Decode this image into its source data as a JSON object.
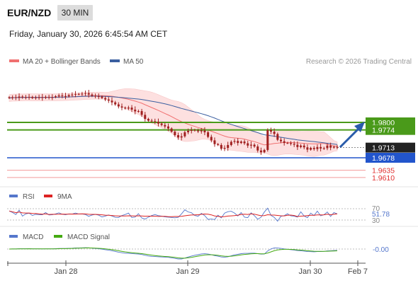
{
  "header": {
    "symbol": "EUR/NZD",
    "interval": "30 MIN",
    "datetime": "Friday, January 30, 2026 6:45:54 AM CET"
  },
  "legend": {
    "ma20": "MA 20 + Bollinger Bands",
    "ma50": "MA 50",
    "copyright": "Research © 2026 Trading Central"
  },
  "colors": {
    "ma20": "#f07070",
    "ma50": "#3b5fa0",
    "band": "#fde0e0",
    "resistance": "#4a9a1a",
    "support": "#2255cc",
    "target_low": "#e03030",
    "arrow": "#2a5caa",
    "rsi": "#5577cc",
    "rsi_ma": "#dd2222",
    "macd": "#5577cc",
    "macd_signal": "#44aa11",
    "candle": "#a02020"
  },
  "chart_data": [
    {
      "type": "candlestick",
      "title": "",
      "x_ticks": [
        "Jan 28",
        "Jan 29",
        "Jan 30",
        "Feb 7"
      ],
      "ylim": [
        1.9595,
        1.9875
      ],
      "price_levels": [
        {
          "label": "1.9800",
          "value": 1.98,
          "kind": "resistance"
        },
        {
          "label": "1.9774",
          "value": 1.9774,
          "kind": "resistance"
        },
        {
          "label": "1.9713",
          "value": 1.9713,
          "kind": "last"
        },
        {
          "label": "1.9678",
          "value": 1.9678,
          "kind": "support"
        },
        {
          "label": "1.9635",
          "value": 1.9635,
          "kind": "target"
        },
        {
          "label": "1.9610",
          "value": 1.961,
          "kind": "target"
        }
      ],
      "close": [
        1.9884,
        1.9887,
        1.9885,
        1.9889,
        1.9886,
        1.9887,
        1.9888,
        1.9884,
        1.9886,
        1.9887,
        1.9885,
        1.9888,
        1.9886,
        1.9887,
        1.989,
        1.9893,
        1.9891,
        1.989,
        1.9894,
        1.9896,
        1.9898,
        1.9897,
        1.9899,
        1.9901,
        1.9896,
        1.9892,
        1.989,
        1.9889,
        1.9884,
        1.9879,
        1.9875,
        1.9869,
        1.9862,
        1.9855,
        1.9851,
        1.9848,
        1.9851,
        1.9844,
        1.9838,
        1.9839,
        1.9826,
        1.9812,
        1.9806,
        1.9804,
        1.9802,
        1.9796,
        1.9791,
        1.9786,
        1.9779,
        1.9768,
        1.9756,
        1.9748,
        1.9752,
        1.9766,
        1.9771,
        1.9774,
        1.9772,
        1.9769,
        1.9772,
        1.9766,
        1.975,
        1.9738,
        1.9725,
        1.9722,
        1.9709,
        1.9712,
        1.9722,
        1.9733,
        1.9736,
        1.9729,
        1.9734,
        1.9728,
        1.972,
        1.9723,
        1.9717,
        1.9703,
        1.9697,
        1.9705,
        1.9773,
        1.9768,
        1.976,
        1.974,
        1.9735,
        1.9729,
        1.9729,
        1.9726,
        1.9723,
        1.9715,
        1.972,
        1.9714,
        1.9706,
        1.9712,
        1.9708,
        1.9715,
        1.971,
        1.9711,
        1.972,
        1.9713,
        1.9716,
        1.9713
      ]
    },
    {
      "type": "line",
      "title": "RSI",
      "series": [
        {
          "name": "RSI"
        },
        {
          "name": "9MA"
        }
      ],
      "ylim": [
        30,
        70
      ],
      "y_ticks": [
        "70",
        "30"
      ],
      "last_value": "51.78"
    },
    {
      "type": "line",
      "title": "MACD",
      "series": [
        {
          "name": "MACD"
        },
        {
          "name": "MACD Signal"
        }
      ],
      "last_value": "-0.00"
    }
  ]
}
